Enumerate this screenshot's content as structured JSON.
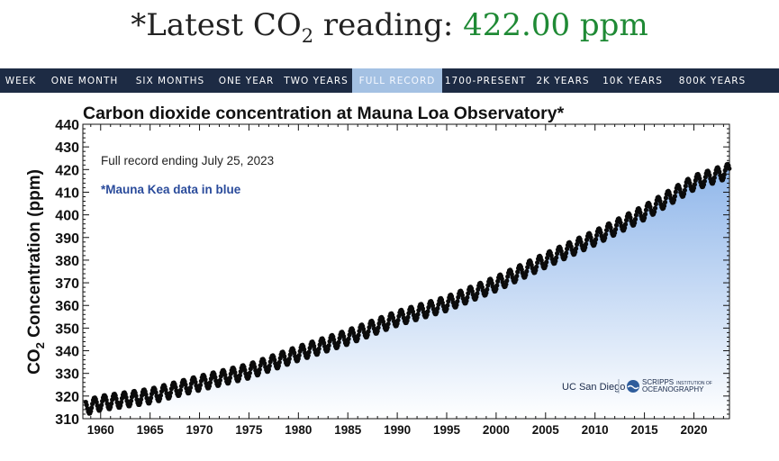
{
  "headline": {
    "prefix": "*Latest CO",
    "sub": "2",
    "middle": " reading: ",
    "value": "422.00 ppm"
  },
  "tabs": [
    {
      "label": "WEEK",
      "active": false
    },
    {
      "label": "ONE MONTH",
      "active": false
    },
    {
      "label": "SIX MONTHS",
      "active": false
    },
    {
      "label": "ONE YEAR",
      "active": false
    },
    {
      "label": "TWO YEARS",
      "active": false
    },
    {
      "label": "FULL RECORD",
      "active": true
    },
    {
      "label": "1700-PRESENT",
      "active": false
    },
    {
      "label": "2K YEARS",
      "active": false
    },
    {
      "label": "10K YEARS",
      "active": false
    },
    {
      "label": "800K YEARS",
      "active": false
    }
  ],
  "logos": {
    "ucsd": "UC San Diego",
    "scripps_top": "SCRIPPS",
    "scripps_small": "INSTITUTION OF",
    "scripps_bottom": "OCEANOGRAPHY"
  },
  "colors": {
    "accent_value": "#1f8a35",
    "tab_bar": "#1d2b44",
    "tab_active": "#a4c1e3",
    "fill_top": "#8fb6ea",
    "fill_bottom": "#ffffff",
    "mauna_kea_text": "#2a4b9b"
  },
  "chart_data": {
    "type": "scatter",
    "title": "Carbon dioxide concentration at Mauna Loa Observatory*",
    "annotation_record": "Full record ending July 25, 2023",
    "annotation_note": "*Mauna Kea data in blue",
    "ylabel_prefix": "CO",
    "ylabel_sub": "2",
    "ylabel_suffix": " Concentration (ppm)",
    "xlabel": "",
    "xlim": [
      1958.2,
      2023.6
    ],
    "ylim": [
      310,
      440
    ],
    "x_ticks": [
      1960,
      1965,
      1970,
      1975,
      1980,
      1985,
      1990,
      1995,
      2000,
      2005,
      2010,
      2015,
      2020
    ],
    "y_ticks": [
      310,
      320,
      330,
      340,
      350,
      360,
      370,
      380,
      390,
      400,
      410,
      420,
      430,
      440
    ],
    "series": [
      {
        "points_per_year": 12,
        "x": [
          1958.5,
          1960,
          1965,
          1970,
          1975,
          1980,
          1985,
          1990,
          1995,
          2000,
          2005,
          2010,
          2015,
          2020,
          2023.56
        ],
        "trend_y": [
          315.0,
          316.9,
          320.0,
          325.7,
          331.0,
          338.8,
          346.0,
          354.3,
          360.8,
          369.6,
          379.9,
          389.9,
          401.0,
          414.2,
          419.5
        ],
        "seasonal_amplitude_ppm": 3.2,
        "fill": "area-gradient"
      }
    ],
    "grid": false,
    "legend": "none"
  }
}
